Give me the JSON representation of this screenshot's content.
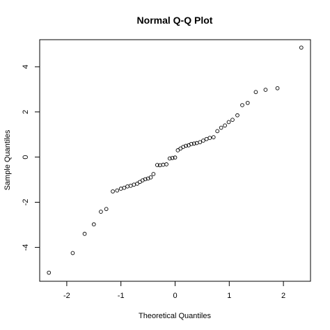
{
  "chart_data": {
    "type": "scatter",
    "title": "Normal Q-Q Plot",
    "xlabel": "Theoretical Quantiles",
    "ylabel": "Sample Quantiles",
    "xlim": [
      -2.5,
      2.5
    ],
    "ylim": [
      -5.5,
      5.2
    ],
    "xticks": [
      -2,
      -1,
      0,
      1,
      2
    ],
    "yticks": [
      -4,
      -2,
      0,
      2,
      4
    ],
    "xtick_labels": [
      "-2",
      "-1",
      "0",
      "1",
      "2"
    ],
    "ytick_labels": [
      "-4",
      "-2",
      "0",
      "2",
      "4"
    ],
    "grid": false,
    "legend": false,
    "marker": "open-circle",
    "colors": {
      "marker": "#000000",
      "axis": "#000000",
      "background": "#ffffff"
    },
    "points": [
      {
        "x": -2.33,
        "y": -5.12
      },
      {
        "x": -1.89,
        "y": -4.25
      },
      {
        "x": -1.67,
        "y": -3.4
      },
      {
        "x": -1.5,
        "y": -2.98
      },
      {
        "x": -1.37,
        "y": -2.42
      },
      {
        "x": -1.27,
        "y": -2.3
      },
      {
        "x": -1.15,
        "y": -1.52
      },
      {
        "x": -1.07,
        "y": -1.48
      },
      {
        "x": -1.0,
        "y": -1.4
      },
      {
        "x": -0.94,
        "y": -1.36
      },
      {
        "x": -0.88,
        "y": -1.3
      },
      {
        "x": -0.82,
        "y": -1.27
      },
      {
        "x": -0.76,
        "y": -1.22
      },
      {
        "x": -0.7,
        "y": -1.18
      },
      {
        "x": -0.65,
        "y": -1.1
      },
      {
        "x": -0.6,
        "y": -1.03
      },
      {
        "x": -0.55,
        "y": -0.98
      },
      {
        "x": -0.5,
        "y": -0.95
      },
      {
        "x": -0.45,
        "y": -0.9
      },
      {
        "x": -0.4,
        "y": -0.75
      },
      {
        "x": -0.33,
        "y": -0.35
      },
      {
        "x": -0.28,
        "y": -0.36
      },
      {
        "x": -0.22,
        "y": -0.34
      },
      {
        "x": -0.16,
        "y": -0.32
      },
      {
        "x": -0.1,
        "y": -0.06
      },
      {
        "x": -0.05,
        "y": -0.04
      },
      {
        "x": 0.0,
        "y": -0.02
      },
      {
        "x": 0.05,
        "y": 0.3
      },
      {
        "x": 0.1,
        "y": 0.38
      },
      {
        "x": 0.15,
        "y": 0.45
      },
      {
        "x": 0.2,
        "y": 0.5
      },
      {
        "x": 0.25,
        "y": 0.52
      },
      {
        "x": 0.3,
        "y": 0.58
      },
      {
        "x": 0.35,
        "y": 0.6
      },
      {
        "x": 0.4,
        "y": 0.62
      },
      {
        "x": 0.46,
        "y": 0.66
      },
      {
        "x": 0.52,
        "y": 0.73
      },
      {
        "x": 0.58,
        "y": 0.8
      },
      {
        "x": 0.64,
        "y": 0.85
      },
      {
        "x": 0.71,
        "y": 0.88
      },
      {
        "x": 0.78,
        "y": 1.15
      },
      {
        "x": 0.85,
        "y": 1.3
      },
      {
        "x": 0.92,
        "y": 1.4
      },
      {
        "x": 0.99,
        "y": 1.55
      },
      {
        "x": 1.06,
        "y": 1.65
      },
      {
        "x": 1.15,
        "y": 1.85
      },
      {
        "x": 1.24,
        "y": 2.3
      },
      {
        "x": 1.34,
        "y": 2.4
      },
      {
        "x": 1.49,
        "y": 2.88
      },
      {
        "x": 1.67,
        "y": 2.98
      },
      {
        "x": 1.89,
        "y": 3.05
      },
      {
        "x": 2.33,
        "y": 4.85
      }
    ]
  }
}
